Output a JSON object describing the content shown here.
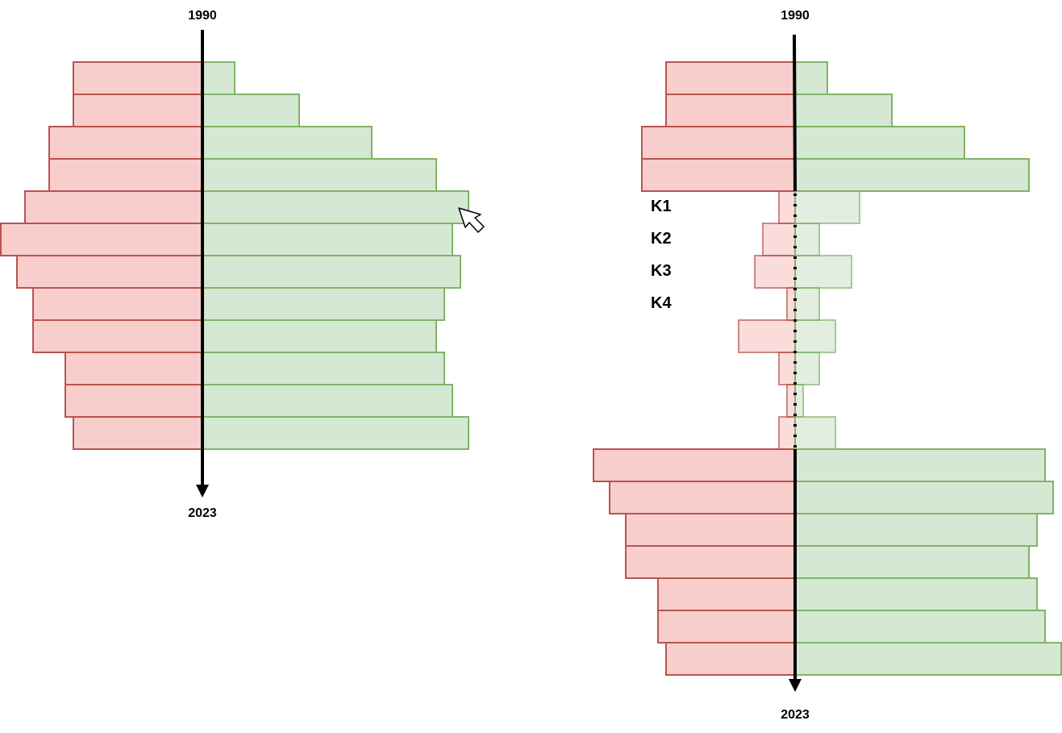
{
  "colors": {
    "negative_fill": "#f8cecc",
    "negative_stroke": "#b85450",
    "positive_fill": "#d5e8d4",
    "positive_stroke": "#82b366",
    "axis": "#000000"
  },
  "left_diagram": {
    "axis_start_label": "1990",
    "axis_end_label": "2023",
    "rows": [
      {
        "negative": 8,
        "positive": 2
      },
      {
        "negative": 8,
        "positive": 6
      },
      {
        "negative": 9.5,
        "positive": 10.5
      },
      {
        "negative": 9.5,
        "positive": 14.5
      },
      {
        "negative": 11,
        "positive": 16.5
      },
      {
        "negative": 12.5,
        "positive": 15.5
      },
      {
        "negative": 11.5,
        "positive": 16
      },
      {
        "negative": 10.5,
        "positive": 15
      },
      {
        "negative": 10.5,
        "positive": 14.5
      },
      {
        "negative": 8.5,
        "positive": 15
      },
      {
        "negative": 8.5,
        "positive": 15.5
      },
      {
        "negative": 8,
        "positive": 16.5
      }
    ]
  },
  "right_diagram": {
    "axis_start_label": "1990",
    "axis_end_label": "2023",
    "row_labels": [
      "K1",
      "K2",
      "K3",
      "K4"
    ],
    "rows": [
      {
        "negative": 8,
        "positive": 2,
        "faded": false
      },
      {
        "negative": 8,
        "positive": 6,
        "faded": false
      },
      {
        "negative": 9.5,
        "positive": 10.5,
        "faded": false
      },
      {
        "negative": 9.5,
        "positive": 14.5,
        "faded": false
      },
      {
        "negative": 1,
        "positive": 4,
        "faded": true
      },
      {
        "negative": 2,
        "positive": 1.5,
        "faded": true
      },
      {
        "negative": 2.5,
        "positive": 3.5,
        "faded": true
      },
      {
        "negative": 0.5,
        "positive": 1.5,
        "faded": true
      },
      {
        "negative": 3.5,
        "positive": 2.5,
        "faded": true
      },
      {
        "negative": 1,
        "positive": 1.5,
        "faded": true
      },
      {
        "negative": 0.5,
        "positive": 0.5,
        "faded": true
      },
      {
        "negative": 1,
        "positive": 2.5,
        "faded": true
      },
      {
        "negative": 12.5,
        "positive": 15.5,
        "faded": false
      },
      {
        "negative": 11.5,
        "positive": 16,
        "faded": false
      },
      {
        "negative": 10.5,
        "positive": 15,
        "faded": false
      },
      {
        "negative": 10.5,
        "positive": 14.5,
        "faded": false
      },
      {
        "negative": 8.5,
        "positive": 15,
        "faded": false
      },
      {
        "negative": 8.5,
        "positive": 15.5,
        "faded": false
      },
      {
        "negative": 8,
        "positive": 16.5,
        "faded": false
      }
    ]
  },
  "cursor": {
    "icon": "arrow-cursor-icon"
  }
}
